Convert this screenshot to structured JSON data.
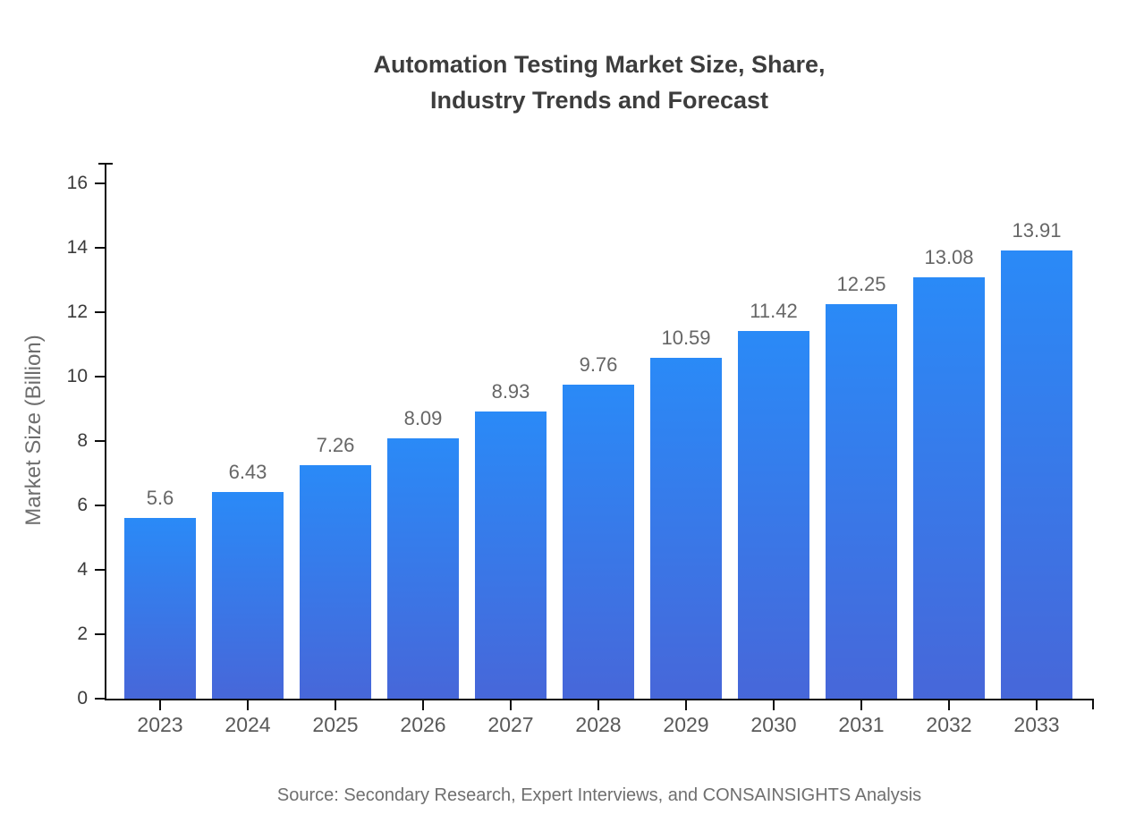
{
  "title": {
    "lines": [
      "Automation Testing Market Size, Share,",
      "Industry Trends and Forecast"
    ]
  },
  "source_note": "Source: Secondary Research, Expert Interviews, and CONSAINSIGHTS Analysis",
  "chart_data": {
    "type": "bar",
    "title": "Automation Testing Market Size, Share, Industry Trends and Forecast",
    "categories": [
      "2023",
      "2024",
      "2025",
      "2026",
      "2027",
      "2028",
      "2029",
      "2030",
      "2031",
      "2032",
      "2033"
    ],
    "values": [
      5.6,
      6.43,
      7.26,
      8.09,
      8.93,
      9.76,
      10.59,
      11.42,
      12.25,
      13.08,
      13.91
    ],
    "value_labels": [
      "5.6",
      "6.43",
      "7.26",
      "8.09",
      "8.93",
      "9.76",
      "10.59",
      "11.42",
      "12.25",
      "13.08",
      "13.91"
    ],
    "xlabel": "",
    "ylabel": "Market Size (Billion)",
    "ylim": [
      0,
      16.6
    ],
    "y_ticks": [
      0,
      2,
      4,
      6,
      8,
      10,
      12,
      14,
      16
    ],
    "grid": false,
    "legend": "none",
    "colors": {
      "bar_gradient_top": "#2a8af7",
      "bar_gradient_bottom": "#4767d9",
      "axis": "#0d0d0d",
      "value_label": "#666666",
      "x_tick_label": "#595959",
      "y_tick_label": "#3b3b3b",
      "title": "#3d3d3d",
      "y_axis_title": "#6e6e6e",
      "source": "#6f6f6f"
    }
  }
}
